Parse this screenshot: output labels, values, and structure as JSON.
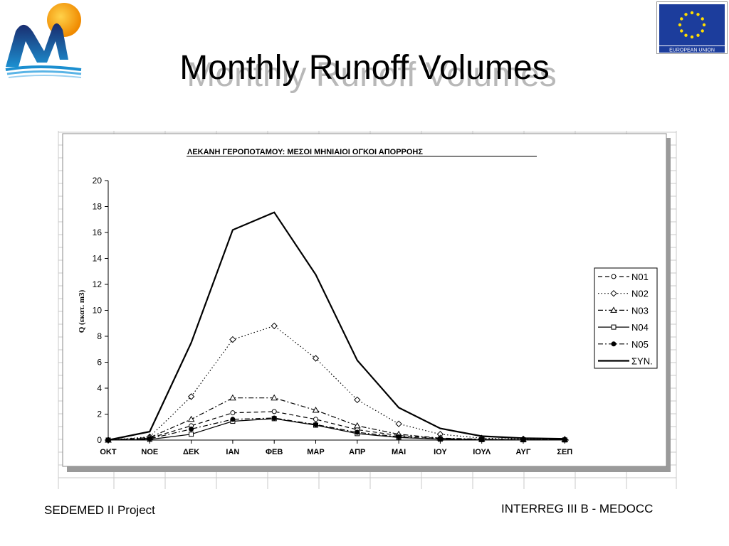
{
  "slide": {
    "title": "Monthly Runoff Volumes",
    "footer_left": "SEDEMED II Project",
    "footer_right": "INTERREG III B - MEDOCC",
    "eu_label": "EUROPEAN UNION"
  },
  "chart_data": {
    "type": "line",
    "title": "ΛΕΚΑΝΗ ΓΕΡΟΠΟΤΑΜΟΥ: ΜΕΣΟΙ ΜΗΝΙΑΙΟΙ ΟΓΚΟΙ ΑΠΟΡΡΟΗΣ",
    "ylabel": "Q (εκατ. m3)",
    "xlabel": "",
    "ylim": [
      0,
      20
    ],
    "yticks": [
      0,
      2,
      4,
      6,
      8,
      10,
      12,
      14,
      16,
      18,
      20
    ],
    "grid": false,
    "legend_position": "right",
    "categories": [
      "ΟΚΤ",
      "ΝΟΕ",
      "ΔΕΚ",
      "ΙΑΝ",
      "ΦΕΒ",
      "ΜΑΡ",
      "ΑΠΡ",
      "ΜΑΙ",
      "ΙΟΥ",
      "ΙΟΥΛ",
      "ΑΥΓ",
      "ΣΕΠ"
    ],
    "series": [
      {
        "name": "N01",
        "marker": "circle-open",
        "dash": "dash",
        "values": [
          0.0,
          0.15,
          1.1,
          2.1,
          2.2,
          1.6,
          0.8,
          0.35,
          0.12,
          0.05,
          0.03,
          0.02
        ]
      },
      {
        "name": "N02",
        "marker": "diamond-open",
        "dash": "dot",
        "values": [
          0.0,
          0.25,
          3.35,
          7.75,
          8.8,
          6.3,
          3.1,
          1.25,
          0.45,
          0.15,
          0.08,
          0.05
        ]
      },
      {
        "name": "N03",
        "marker": "triangle-open",
        "dash": "dashdot",
        "values": [
          0.0,
          0.2,
          1.6,
          3.25,
          3.25,
          2.3,
          1.1,
          0.45,
          0.15,
          0.07,
          0.04,
          0.03
        ]
      },
      {
        "name": "N04",
        "marker": "square-open",
        "dash": "solid-thin",
        "values": [
          0.0,
          0.05,
          0.45,
          1.45,
          1.65,
          1.15,
          0.5,
          0.2,
          0.07,
          0.03,
          0.02,
          0.01
        ]
      },
      {
        "name": "N05",
        "marker": "circle-filled",
        "dash": "dashdot",
        "values": [
          0.0,
          0.1,
          0.85,
          1.6,
          1.7,
          1.2,
          0.6,
          0.25,
          0.08,
          0.04,
          0.02,
          0.01
        ]
      },
      {
        "name": "ΣΥΝ.",
        "marker": "none",
        "dash": "solid-thick",
        "values": [
          0.0,
          0.65,
          7.5,
          16.2,
          17.55,
          12.75,
          6.15,
          2.5,
          0.9,
          0.3,
          0.15,
          0.1
        ]
      }
    ]
  }
}
